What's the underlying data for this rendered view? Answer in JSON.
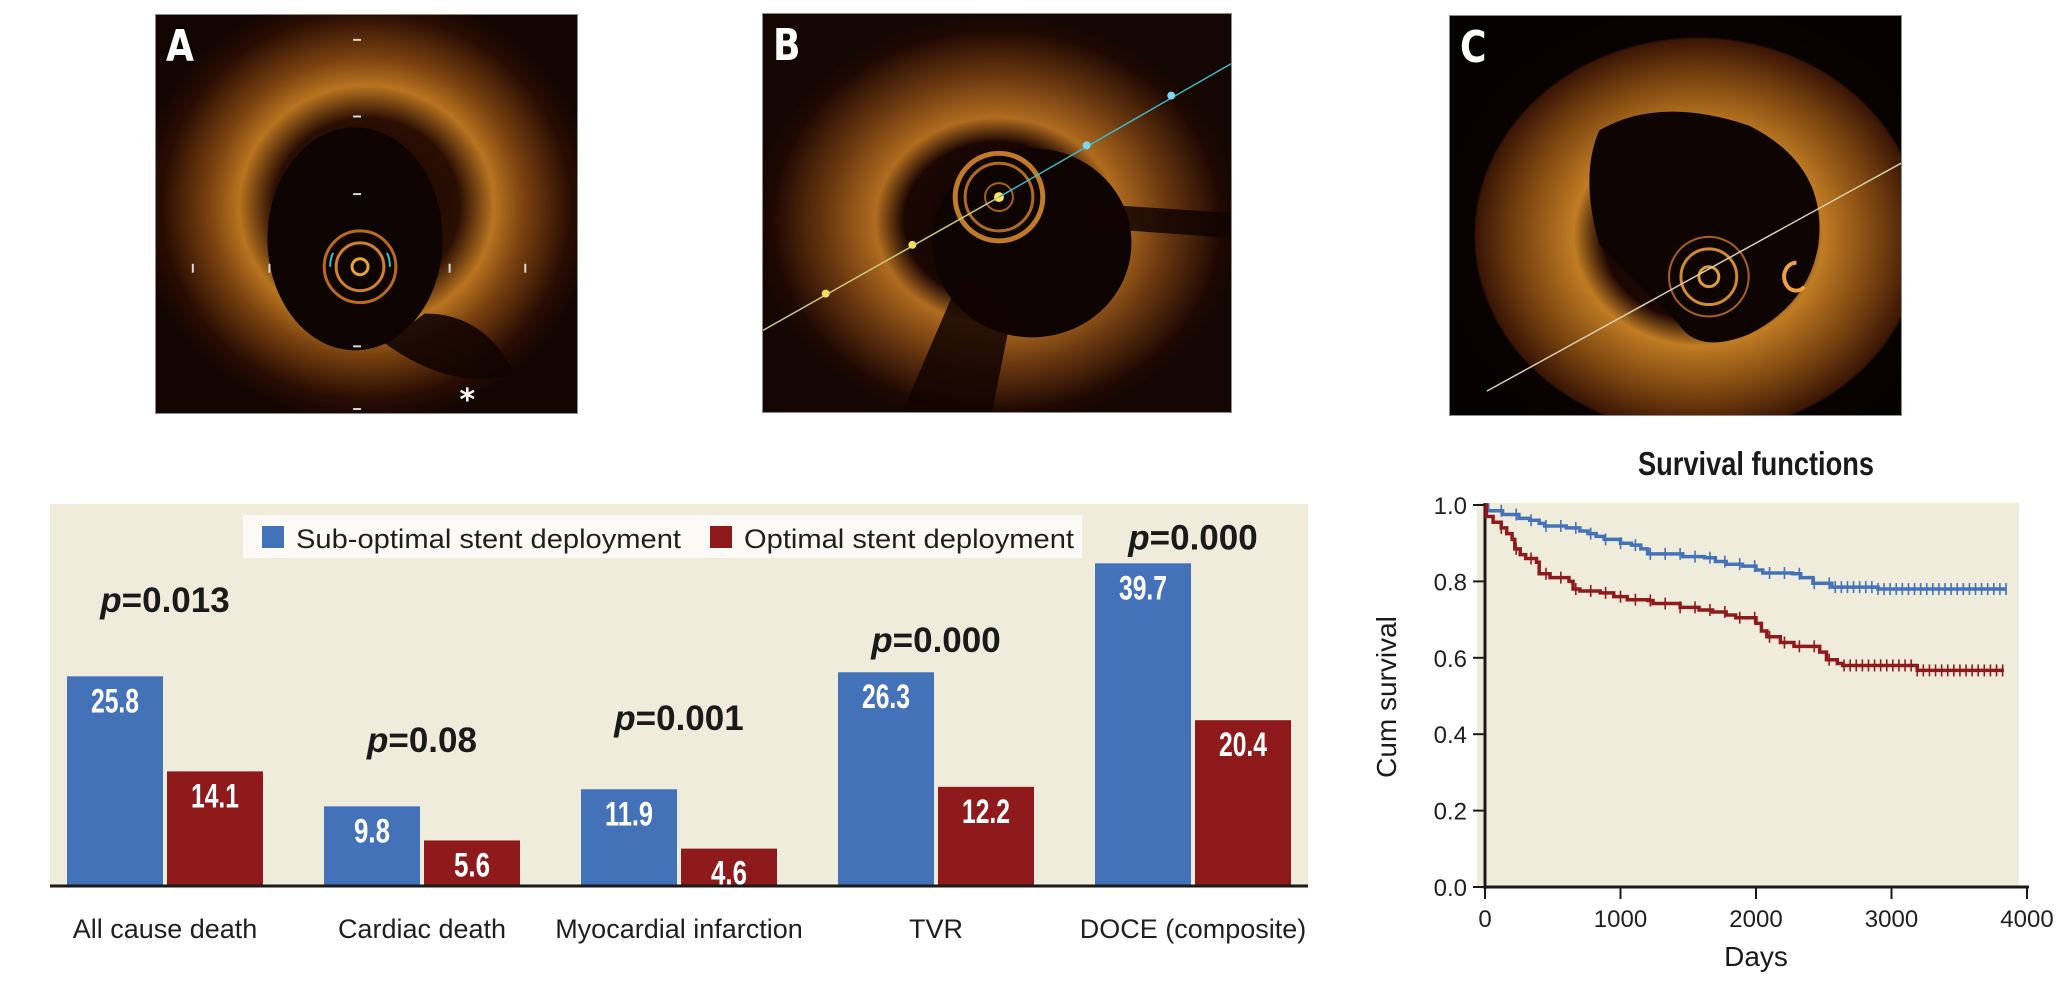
{
  "panels": [
    {
      "letter": "A",
      "annotation": "*"
    },
    {
      "letter": "B",
      "annotation": ""
    },
    {
      "letter": "C",
      "annotation": ""
    }
  ],
  "colors": {
    "suboptimal": "#4472b8",
    "optimal": "#8e1a1b",
    "plot_bg": "#f0ecdc",
    "legend_bg": "#fbfaf6",
    "axis": "#1a1a1a"
  },
  "chart_data": [
    {
      "type": "bar",
      "title": "",
      "xlabel": "",
      "ylabel": "",
      "categories": [
        "All cause death",
        "Cardiac death",
        "Myocardial infarction",
        "TVR",
        "DOCE (composite)"
      ],
      "series": [
        {
          "name": "Sub-optimal stent deployment",
          "values": [
            25.8,
            9.8,
            11.9,
            26.3,
            39.7
          ]
        },
        {
          "name": "Optimal stent deployment",
          "values": [
            14.1,
            5.6,
            4.6,
            12.2,
            20.4
          ]
        }
      ],
      "value_labels": {
        "suboptimal": [
          "25.8",
          "9.8",
          "11.9",
          "26.3",
          "39.7"
        ],
        "optimal": [
          "14.1",
          "5.6",
          "4.6",
          "12.2",
          "20.4"
        ]
      },
      "p_values": [
        "=0.013",
        "=0.08",
        "=0.001",
        "=0.000",
        "=0.000"
      ],
      "p_symbol": "p",
      "ylim": [
        0,
        47
      ],
      "legend": {
        "placement": "top-center",
        "entries": [
          "Sub-optimal stent deployment",
          "Optimal stent deployment"
        ]
      },
      "grid": false
    },
    {
      "type": "line",
      "title": "Survival functions",
      "xlabel": "Days",
      "ylabel": "Cum survival",
      "xlim": [
        0,
        4000
      ],
      "ylim": [
        0.0,
        1.0
      ],
      "xticks": [
        "0",
        "1000",
        "2000",
        "3000",
        "4000"
      ],
      "yticks": [
        "0.0",
        "0.2",
        "0.4",
        "0.6",
        "0.8",
        "1.0"
      ],
      "grid": false,
      "series": [
        {
          "name": "Sub-optimal stent deployment",
          "color_key": "optimal",
          "step_points": [
            [
              0,
              1.0
            ],
            [
              20,
              0.985
            ],
            [
              100,
              0.985
            ],
            [
              130,
              0.975
            ],
            [
              250,
              0.965
            ],
            [
              330,
              0.96
            ],
            [
              400,
              0.952
            ],
            [
              440,
              0.945
            ],
            [
              600,
              0.94
            ],
            [
              700,
              0.932
            ],
            [
              760,
              0.925
            ],
            [
              820,
              0.918
            ],
            [
              880,
              0.91
            ],
            [
              1000,
              0.9
            ],
            [
              1080,
              0.895
            ],
            [
              1150,
              0.885
            ],
            [
              1200,
              0.872
            ],
            [
              1420,
              0.872
            ],
            [
              1460,
              0.865
            ],
            [
              1620,
              0.862
            ],
            [
              1700,
              0.852
            ],
            [
              1780,
              0.845
            ],
            [
              1900,
              0.84
            ],
            [
              2000,
              0.83
            ],
            [
              2050,
              0.822
            ],
            [
              2270,
              0.82
            ],
            [
              2330,
              0.81
            ],
            [
              2420,
              0.795
            ],
            [
              2560,
              0.785
            ],
            [
              2850,
              0.785
            ],
            [
              2900,
              0.78
            ],
            [
              3850,
              0.78
            ]
          ],
          "censor_marks_dense_after": 2450
        },
        {
          "name": "Optimal stent deployment",
          "color_key": "optimal",
          "step_points": [
            [
              0,
              1.0
            ],
            [
              10,
              0.97
            ],
            [
              60,
              0.955
            ],
            [
              120,
              0.94
            ],
            [
              160,
              0.925
            ],
            [
              200,
              0.91
            ],
            [
              220,
              0.885
            ],
            [
              260,
              0.87
            ],
            [
              300,
              0.86
            ],
            [
              380,
              0.85
            ],
            [
              400,
              0.82
            ],
            [
              480,
              0.81
            ],
            [
              580,
              0.81
            ],
            [
              620,
              0.8
            ],
            [
              650,
              0.78
            ],
            [
              700,
              0.775
            ],
            [
              850,
              0.77
            ],
            [
              950,
              0.76
            ],
            [
              1050,
              0.752
            ],
            [
              1200,
              0.75
            ],
            [
              1240,
              0.742
            ],
            [
              1400,
              0.742
            ],
            [
              1440,
              0.732
            ],
            [
              1580,
              0.725
            ],
            [
              1680,
              0.72
            ],
            [
              1780,
              0.712
            ],
            [
              1850,
              0.705
            ],
            [
              1960,
              0.705
            ],
            [
              2000,
              0.69
            ],
            [
              2040,
              0.67
            ],
            [
              2080,
              0.655
            ],
            [
              2180,
              0.64
            ],
            [
              2280,
              0.63
            ],
            [
              2420,
              0.63
            ],
            [
              2470,
              0.615
            ],
            [
              2520,
              0.595
            ],
            [
              2600,
              0.585
            ],
            [
              2640,
              0.58
            ],
            [
              3170,
              0.58
            ],
            [
              3190,
              0.567
            ],
            [
              3830,
              0.567
            ]
          ],
          "censor_marks_dense_after": 2640
        }
      ]
    }
  ]
}
